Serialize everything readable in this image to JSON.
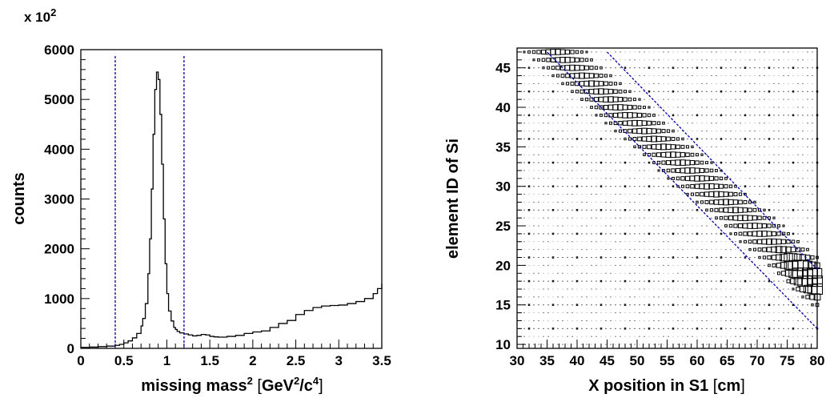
{
  "chart_data": [
    {
      "type": "line",
      "drawstyle": "steps",
      "xlabel": "missing mass",
      "xlabel_sup": "2",
      "xlabel_units_pre": "GeV",
      "xlabel_units_sup1": "2",
      "xlabel_units_mid": "/c",
      "xlabel_units_sup2": "4",
      "ylabel": "counts",
      "scale_note": "x 10",
      "scale_note_sup": "2",
      "xlim": [
        0,
        3.5
      ],
      "ylim": [
        0,
        6000
      ],
      "xticks": [
        "0",
        "0.5",
        "1",
        "1.5",
        "2",
        "2.5",
        "3",
        "3.5"
      ],
      "xtick_values": [
        0,
        0.5,
        1,
        1.5,
        2,
        2.5,
        3,
        3.5
      ],
      "yticks": [
        "0",
        "1000",
        "2000",
        "3000",
        "4000",
        "5000",
        "6000"
      ],
      "ytick_values": [
        0,
        1000,
        2000,
        3000,
        4000,
        5000,
        6000
      ],
      "cut_lines_x": [
        0.4,
        1.2
      ],
      "cut_color": "#0000aa",
      "series": [
        {
          "x": [
            0,
            0.1,
            0.2,
            0.3,
            0.4,
            0.45,
            0.5,
            0.55,
            0.6,
            0.65,
            0.7,
            0.72,
            0.75,
            0.78,
            0.8,
            0.82,
            0.84,
            0.86,
            0.88,
            0.9,
            0.92,
            0.94,
            0.96,
            0.98,
            1.0,
            1.02,
            1.05,
            1.08,
            1.1,
            1.12,
            1.15,
            1.2,
            1.25,
            1.3,
            1.35,
            1.4,
            1.45,
            1.5,
            1.55,
            1.6,
            1.7,
            1.8,
            1.9,
            2.0,
            2.1,
            2.2,
            2.3,
            2.4,
            2.5,
            2.6,
            2.7,
            2.8,
            2.9,
            3.0,
            3.1,
            3.2,
            3.3,
            3.4,
            3.45,
            3.5
          ],
          "y": [
            20,
            25,
            35,
            45,
            60,
            80,
            110,
            150,
            210,
            300,
            450,
            600,
            900,
            1500,
            2200,
            3200,
            4300,
            5200,
            5550,
            5400,
            4700,
            3700,
            2600,
            1700,
            1100,
            750,
            550,
            420,
            380,
            340,
            310,
            290,
            270,
            250,
            260,
            280,
            270,
            240,
            230,
            225,
            240,
            260,
            300,
            330,
            350,
            420,
            500,
            560,
            680,
            760,
            820,
            850,
            860,
            870,
            900,
            940,
            1000,
            1100,
            1200,
            1300
          ]
        }
      ]
    },
    {
      "type": "heatmap",
      "xlabel": "X position in S1",
      "xlabel_units": "cm",
      "ylabel": "element ID of Si",
      "xlim": [
        30,
        80
      ],
      "ylim": [
        9.5,
        47.5
      ],
      "xticks": [
        "30",
        "35",
        "40",
        "45",
        "50",
        "55",
        "60",
        "65",
        "70",
        "75",
        "80"
      ],
      "xtick_values": [
        30,
        35,
        40,
        45,
        50,
        55,
        60,
        65,
        70,
        75,
        80
      ],
      "yticks": [
        "10",
        "15",
        "20",
        "25",
        "30",
        "35",
        "40",
        "45"
      ],
      "ytick_values": [
        10,
        15,
        20,
        25,
        30,
        35,
        40,
        45
      ],
      "band_model": {
        "description": "box size proportional to count; band element ID = 71.4 - 0.67*X",
        "slope": -0.67,
        "intercept": 71.4,
        "peak_x": 78,
        "peak_id": 18
      },
      "cut_lines": [
        {
          "x": [
            35,
            80
          ],
          "y": [
            47,
            12
          ]
        },
        {
          "x": [
            45,
            80
          ],
          "y": [
            47,
            19.5
          ]
        }
      ],
      "cut_color": "#0000aa"
    }
  ]
}
